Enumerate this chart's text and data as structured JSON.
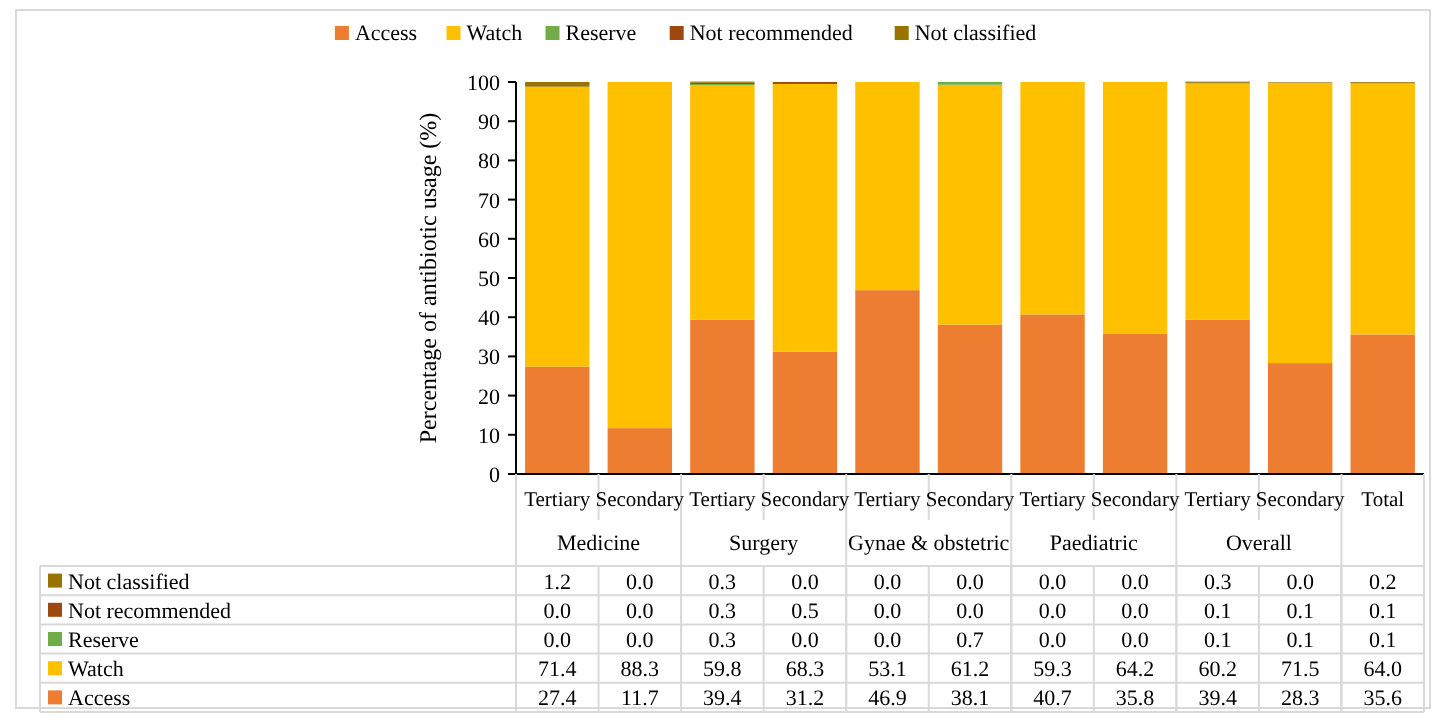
{
  "chart_data": {
    "type": "bar",
    "stacked": true,
    "ylabel": "Percentage of antibiotic usage (%)",
    "categories": [
      "Tertiary",
      "Secondary",
      "Tertiary",
      "Secondary",
      "Tertiary",
      "Secondary",
      "Tertiary",
      "Secondary",
      "Tertiary",
      "Secondary",
      "Total"
    ],
    "annotations": [
      "Medicine",
      "Surgery",
      "Gynae & obstetric",
      "Paediatric",
      "Overall"
    ],
    "series": [
      {
        "name": "Access",
        "color": "#ed7d31",
        "values": [
          27.4,
          11.7,
          39.4,
          31.2,
          46.9,
          38.1,
          40.7,
          35.8,
          39.4,
          28.3,
          35.6
        ],
        "value_labels": [
          "27.4",
          "11.7",
          "39.4",
          "31.2",
          "46.9",
          "38.1",
          "40.7",
          "35.8",
          "39.4",
          "28.3",
          "35.6"
        ]
      },
      {
        "name": "Watch",
        "color": "#ffc000",
        "values": [
          71.4,
          88.3,
          59.8,
          68.3,
          53.1,
          61.2,
          59.3,
          64.2,
          60.2,
          71.5,
          64.0
        ],
        "value_labels": [
          "71.4",
          "88.3",
          "59.8",
          "68.3",
          "53.1",
          "61.2",
          "59.3",
          "64.2",
          "60.2",
          "71.5",
          "64.0"
        ]
      },
      {
        "name": "Reserve",
        "color": "#70ad47",
        "values": [
          0.0,
          0.0,
          0.3,
          0.0,
          0.0,
          0.7,
          0.0,
          0.0,
          0.1,
          0.1,
          0.1
        ],
        "value_labels": [
          "0.0",
          "0.0",
          "0.3",
          "0.0",
          "0.0",
          "0.7",
          "0.0",
          "0.0",
          "0.1",
          "0.1",
          "0.1"
        ]
      },
      {
        "name": "Not recommended",
        "color": "#9e480e",
        "values": [
          0.0,
          0.0,
          0.3,
          0.5,
          0.0,
          0.0,
          0.0,
          0.0,
          0.1,
          0.1,
          0.1
        ],
        "value_labels": [
          "0.0",
          "0.0",
          "0.3",
          "0.5",
          "0.0",
          "0.0",
          "0.0",
          "0.0",
          "0.1",
          "0.1",
          "0.1"
        ]
      },
      {
        "name": "Not classified",
        "color": "#997300",
        "values": [
          1.2,
          0.0,
          0.3,
          0.0,
          0.0,
          0.0,
          0.0,
          0.0,
          0.3,
          0.0,
          0.2
        ],
        "value_labels": [
          "1.2",
          "0.0",
          "0.3",
          "0.0",
          "0.0",
          "0.0",
          "0.0",
          "0.0",
          "0.3",
          "0.0",
          "0.2"
        ]
      }
    ],
    "ylim": [
      0,
      100
    ],
    "yticks": [
      0,
      10,
      20,
      30,
      40,
      50,
      60,
      70,
      80,
      90,
      100
    ],
    "legend": "top"
  }
}
